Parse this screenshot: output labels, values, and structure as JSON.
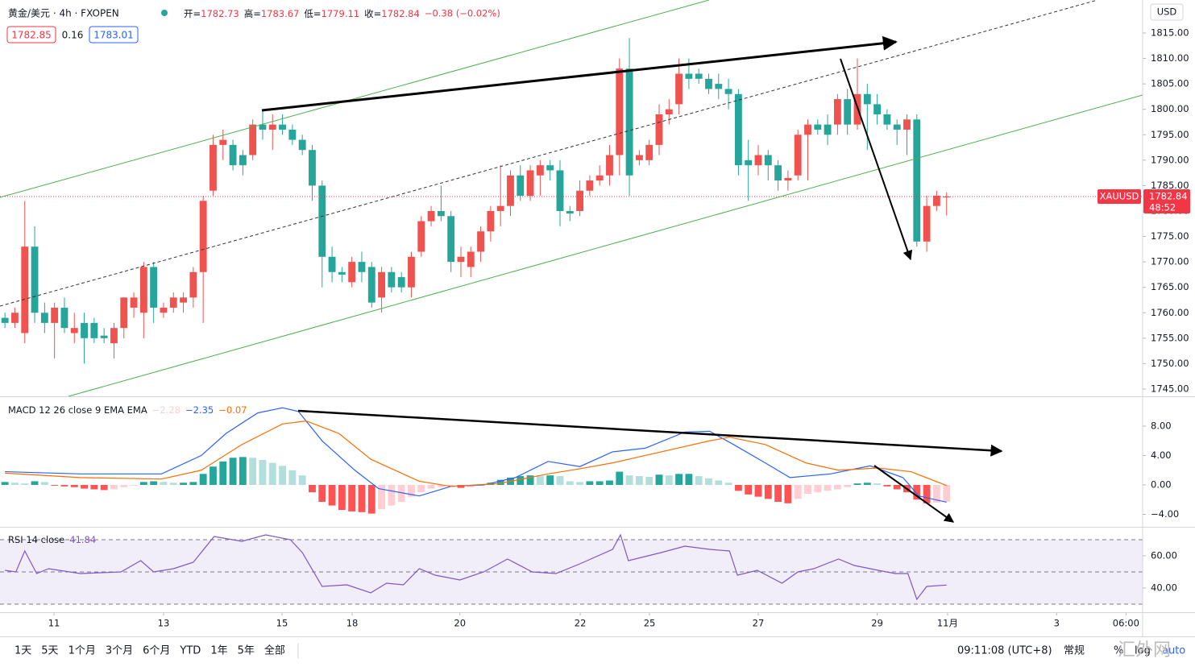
{
  "header": {
    "symbol": "黄金/美元 · 4h · FXOPEN",
    "ohlc_labels": [
      "开=",
      "高=",
      "低=",
      "收="
    ],
    "change": "−0.38 (−0.02%)",
    "bid": "1782.85",
    "spread": "0.16",
    "ask": "1783.01",
    "currency": "USD"
  },
  "price_tag": {
    "symbol": "XAUUSD",
    "countdown": "48:52"
  },
  "toolbar": {
    "ranges": [
      "1天",
      "5天",
      "1个月",
      "3个月",
      "6个月",
      "YTD",
      "1年",
      "5年",
      "全部"
    ],
    "clock": "09:11:08 (UTC+8)",
    "session": "常规",
    "percent": "%",
    "log": "log",
    "auto": "auto"
  },
  "watermark": "汇外网",
  "chart_data": [
    {
      "type": "candlestick",
      "up_color": "#ef5350",
      "down_color": "#26a69a",
      "last_color": "#f23645",
      "grid": false,
      "xlim": [
        -0.5,
        114.78
      ],
      "xticks": [
        {
          "value": 4.95,
          "label": "11"
        },
        {
          "value": 16.0,
          "label": "13"
        },
        {
          "value": 27.95,
          "label": "15"
        },
        {
          "value": 35.03,
          "label": "18"
        },
        {
          "value": 45.9,
          "label": "20"
        },
        {
          "value": 58.04,
          "label": "22"
        },
        {
          "value": 65.03,
          "label": "25"
        },
        {
          "value": 76.0,
          "label": "27"
        },
        {
          "value": 88.0,
          "label": "29"
        },
        {
          "value": 95.1,
          "label": "11月"
        },
        {
          "value": 106.1,
          "label": "3"
        },
        {
          "value": 113.1,
          "label": "06:00"
        }
      ],
      "ylim": [
        1743.57,
        1821.49
      ],
      "yticks": [
        {
          "value": 1745,
          "label": "1745.00"
        },
        {
          "value": 1750,
          "label": "1750.00"
        },
        {
          "value": 1755,
          "label": "1755.00"
        },
        {
          "value": 1760,
          "label": "1760.00"
        },
        {
          "value": 1765,
          "label": "1765.00"
        },
        {
          "value": 1770,
          "label": "1770.00"
        },
        {
          "value": 1775,
          "label": "1775.00"
        },
        {
          "value": 1780,
          "label": "1780.00"
        },
        {
          "value": 1785,
          "label": "1785.00"
        },
        {
          "value": 1790,
          "label": "1790.00"
        },
        {
          "value": 1795,
          "label": "1795.00"
        },
        {
          "value": 1800,
          "label": "1800.00"
        },
        {
          "value": 1805,
          "label": "1805.00"
        },
        {
          "value": 1810,
          "label": "1810.00"
        },
        {
          "value": 1815,
          "label": "1815.00"
        }
      ],
      "ohlc": [
        [
          1759,
          1760,
          1757,
          1758
        ],
        [
          1758,
          1761,
          1757,
          1760
        ],
        [
          1756,
          1782,
          1754,
          1773
        ],
        [
          1773,
          1777,
          1758,
          1760
        ],
        [
          1760,
          1762,
          1756,
          1758
        ],
        [
          1758,
          1762,
          1751,
          1761
        ],
        [
          1761,
          1763,
          1756,
          1757
        ],
        [
          1756,
          1760,
          1754,
          1757
        ],
        [
          1758,
          1760,
          1750,
          1755
        ],
        [
          1758,
          1759,
          1754,
          1755
        ],
        [
          1755.5,
          1757,
          1754,
          1755
        ],
        [
          1754,
          1758,
          1751,
          1757
        ],
        [
          1757,
          1763,
          1755,
          1763
        ],
        [
          1761,
          1764,
          1759,
          1763
        ],
        [
          1760,
          1770,
          1755,
          1769
        ],
        [
          1769,
          1770,
          1758,
          1761
        ],
        [
          1760,
          1762,
          1759,
          1761
        ],
        [
          1761,
          1764,
          1760,
          1763
        ],
        [
          1762,
          1764,
          1760,
          1763
        ],
        [
          1763,
          1769,
          1761,
          1768
        ],
        [
          1768,
          1783,
          1758,
          1782
        ],
        [
          1784,
          1795,
          1783,
          1793
        ],
        [
          1793,
          1796,
          1790,
          1794
        ],
        [
          1793,
          1794,
          1788,
          1789
        ],
        [
          1791,
          1792,
          1787,
          1789
        ],
        [
          1791,
          1798,
          1790,
          1797
        ],
        [
          1797,
          1800,
          1794,
          1796
        ],
        [
          1796,
          1799,
          1792,
          1797
        ],
        [
          1797,
          1799,
          1795,
          1796
        ],
        [
          1796,
          1797,
          1793,
          1794
        ],
        [
          1794,
          1795,
          1791,
          1792
        ],
        [
          1792,
          1793,
          1782,
          1785
        ],
        [
          1785,
          1786,
          1765,
          1771
        ],
        [
          1771,
          1773,
          1766,
          1768
        ],
        [
          1768,
          1769,
          1766,
          1767.5
        ],
        [
          1766,
          1771,
          1765,
          1770
        ],
        [
          1770,
          1772,
          1766,
          1768
        ],
        [
          1769,
          1770,
          1761,
          1762
        ],
        [
          1763,
          1769,
          1760,
          1768
        ],
        [
          1768,
          1769,
          1764,
          1765
        ],
        [
          1767,
          1768,
          1764,
          1765
        ],
        [
          1765,
          1772,
          1763,
          1771
        ],
        [
          1772,
          1779,
          1771,
          1778
        ],
        [
          1778,
          1781,
          1777,
          1780
        ],
        [
          1780,
          1785,
          1778,
          1779
        ],
        [
          1779,
          1780,
          1768,
          1770
        ],
        [
          1770,
          1773,
          1767,
          1771
        ],
        [
          1769,
          1773,
          1767,
          1772
        ],
        [
          1772,
          1777,
          1770,
          1776
        ],
        [
          1776,
          1781,
          1774,
          1780
        ],
        [
          1780,
          1789,
          1777,
          1781
        ],
        [
          1781,
          1788,
          1779,
          1787
        ],
        [
          1787,
          1789,
          1782,
          1783
        ],
        [
          1783,
          1789,
          1782,
          1788
        ],
        [
          1787,
          1790,
          1783,
          1789
        ],
        [
          1789,
          1790,
          1786,
          1788
        ],
        [
          1788,
          1790,
          1777,
          1780
        ],
        [
          1780,
          1781,
          1778,
          1779.5
        ],
        [
          1780,
          1786,
          1779,
          1784
        ],
        [
          1784,
          1787,
          1783,
          1786
        ],
        [
          1786,
          1789,
          1785,
          1787
        ],
        [
          1787,
          1793,
          1785,
          1791
        ],
        [
          1791,
          1810,
          1787,
          1808
        ],
        [
          1808,
          1814,
          1783,
          1787
        ],
        [
          1790,
          1792,
          1789,
          1791
        ],
        [
          1790,
          1794,
          1789,
          1793
        ],
        [
          1793,
          1801,
          1791,
          1799
        ],
        [
          1799,
          1802,
          1797,
          1800
        ],
        [
          1801,
          1810,
          1799,
          1807
        ],
        [
          1807,
          1810,
          1804,
          1806
        ],
        [
          1807,
          1808,
          1805,
          1806
        ],
        [
          1806,
          1807,
          1803,
          1804
        ],
        [
          1805,
          1807,
          1802,
          1804
        ],
        [
          1804,
          1806,
          1800,
          1803
        ],
        [
          1803,
          1804,
          1787,
          1789
        ],
        [
          1790,
          1794,
          1782,
          1789
        ],
        [
          1789,
          1793,
          1787,
          1791
        ],
        [
          1791,
          1792,
          1786,
          1789
        ],
        [
          1789,
          1790,
          1784,
          1786
        ],
        [
          1786,
          1788,
          1784,
          1786.5
        ],
        [
          1787,
          1796,
          1786,
          1795
        ],
        [
          1795,
          1798,
          1786,
          1797
        ],
        [
          1797,
          1798,
          1795,
          1796
        ],
        [
          1797,
          1799,
          1793,
          1795
        ],
        [
          1797,
          1803,
          1795,
          1802
        ],
        [
          1802,
          1804,
          1795,
          1797
        ],
        [
          1797,
          1810,
          1796,
          1803
        ],
        [
          1803,
          1805,
          1792,
          1801
        ],
        [
          1801,
          1803,
          1797,
          1799
        ],
        [
          1799,
          1800,
          1796,
          1797
        ],
        [
          1797,
          1798,
          1793,
          1796
        ],
        [
          1796,
          1799,
          1791,
          1798
        ],
        [
          1798,
          1799,
          1773,
          1774
        ],
        [
          1774,
          1783,
          1772,
          1781
        ],
        [
          1781,
          1784,
          1780,
          1783
        ],
        [
          1782.73,
          1783.67,
          1779.11,
          1782.84
        ]
      ]
    },
    {
      "type": "macd",
      "title": "MACD 12 26 close 9 EMA EMA",
      "legend_values": [
        "−2.28",
        "−2.35",
        "−0.07"
      ],
      "colors": [
        "#26a69a",
        "#b2dfdb",
        "#ff5252",
        "#ffcdd2"
      ],
      "ylim": [
        -5.7,
        11.95
      ],
      "yticks": [
        {
          "value": -4,
          "label": "−4.00"
        },
        {
          "value": 0,
          "label": "0.00"
        },
        {
          "value": 4,
          "label": "4.00"
        },
        {
          "value": 8,
          "label": "8.00"
        }
      ],
      "histogram": [
        0.4,
        0.3,
        0.2,
        0.5,
        0.4,
        -0.1,
        -0.2,
        -0.3,
        -0.5,
        -0.6,
        -0.7,
        -0.6,
        -0.3,
        -0.1,
        0.4,
        0.5,
        0.4,
        0.3,
        0.3,
        0.4,
        1.5,
        2.5,
        3.2,
        3.7,
        3.8,
        3.7,
        3.4,
        3.0,
        2.6,
        2.0,
        1.3,
        -1.0,
        -2.3,
        -2.8,
        -3.4,
        -3.6,
        -3.7,
        -3.9,
        -3.3,
        -2.8,
        -2.3,
        -1.6,
        -1.0,
        -0.5,
        -0.3,
        -0.1,
        -0.4,
        -0.3,
        -0.1,
        0.3,
        0.7,
        1.0,
        1.2,
        1.3,
        1.2,
        1.3,
        1.2,
        0.5,
        0.4,
        0.5,
        0.5,
        0.6,
        1.8,
        1.3,
        1.2,
        1.1,
        1.4,
        1.3,
        1.5,
        1.5,
        1.2,
        0.9,
        0.6,
        0.3,
        -0.8,
        -1.3,
        -1.6,
        -1.9,
        -2.3,
        -2.5,
        -1.9,
        -1.2,
        -1.0,
        -0.8,
        -0.6,
        -0.3,
        0.2,
        0.3,
        0.2,
        -0.2,
        -0.6,
        -1.0,
        -2.0,
        -2.5,
        -2.4,
        -2.28
      ],
      "series": [
        {
          "name": "MACD",
          "color": "#2962ff",
          "x": [
            0,
            7.6,
            15.8,
            19.8,
            22.3,
            25.5,
            28,
            29.6,
            32,
            35.3,
            37.7,
            41.8,
            45,
            48.3,
            51.5,
            54.8,
            58,
            61.3,
            64.6,
            68.6,
            71.1,
            73.5,
            76.7,
            79.2,
            83.3,
            87.3,
            90.6,
            92.2,
            95
          ],
          "values": [
            1.8,
            1.5,
            1.5,
            4,
            7,
            9.8,
            10.5,
            10,
            6,
            2,
            -0.5,
            -1.5,
            -0.2,
            0,
            1,
            3.2,
            2.5,
            4.5,
            5,
            7.2,
            7.3,
            5.5,
            3,
            1,
            1.5,
            2.6,
            1,
            -1.5,
            -2.35
          ]
        },
        {
          "name": "Signal",
          "color": "#ff6d00",
          "x": [
            0,
            7.6,
            15.8,
            19.8,
            23.9,
            28,
            30.4,
            33.7,
            36.9,
            41.8,
            45,
            49.9,
            54.8,
            58,
            61.3,
            66.2,
            71.1,
            73.1,
            76.7,
            80.8,
            84.1,
            88.1,
            91.4,
            95
          ],
          "values": [
            1.6,
            1,
            0.8,
            2,
            5.5,
            8.3,
            8.7,
            7,
            3.5,
            0.5,
            -0.2,
            0.2,
            1.5,
            2.2,
            3,
            4.5,
            6,
            6.5,
            5.5,
            3,
            2,
            2.3,
            1.8,
            -0.07
          ]
        }
      ]
    },
    {
      "type": "line",
      "title": "RSI 14 close",
      "color": "#7e57c2",
      "band_fill": "rgba(126,87,194,0.1)",
      "bands": [
        70,
        50,
        30
      ],
      "ylim": [
        25,
        77.5
      ],
      "yticks": [
        {
          "value": 40,
          "label": "40.00"
        },
        {
          "value": 60,
          "label": "60.00"
        }
      ],
      "x": [
        0,
        1.1,
        2,
        3.2,
        4.4,
        7.6,
        11.7,
        13.7,
        15,
        17,
        19,
        21.1,
        23.9,
        26.3,
        28.8,
        30,
        32,
        34.5,
        36.9,
        38.5,
        40.2,
        41.8,
        43.4,
        45.9,
        48.3,
        50.7,
        53.2,
        55.6,
        58,
        61.3,
        62.1,
        62.9,
        66.2,
        68.6,
        71.1,
        73.1,
        73.9,
        75.9,
        78.4,
        80,
        81.6,
        84.1,
        85.7,
        88.1,
        89.8,
        91.1,
        92,
        93,
        95
      ],
      "values": [
        51,
        50,
        63,
        49,
        52,
        49,
        50,
        57,
        50,
        52,
        56,
        72,
        69,
        73,
        70,
        62,
        41,
        42,
        37,
        43,
        42,
        52,
        48,
        45,
        50,
        58,
        50,
        49,
        55,
        64,
        73,
        57,
        62,
        66,
        64,
        63,
        48,
        51,
        43,
        50,
        52,
        58,
        54,
        51,
        49,
        49,
        33,
        41,
        41.84
      ]
    }
  ]
}
